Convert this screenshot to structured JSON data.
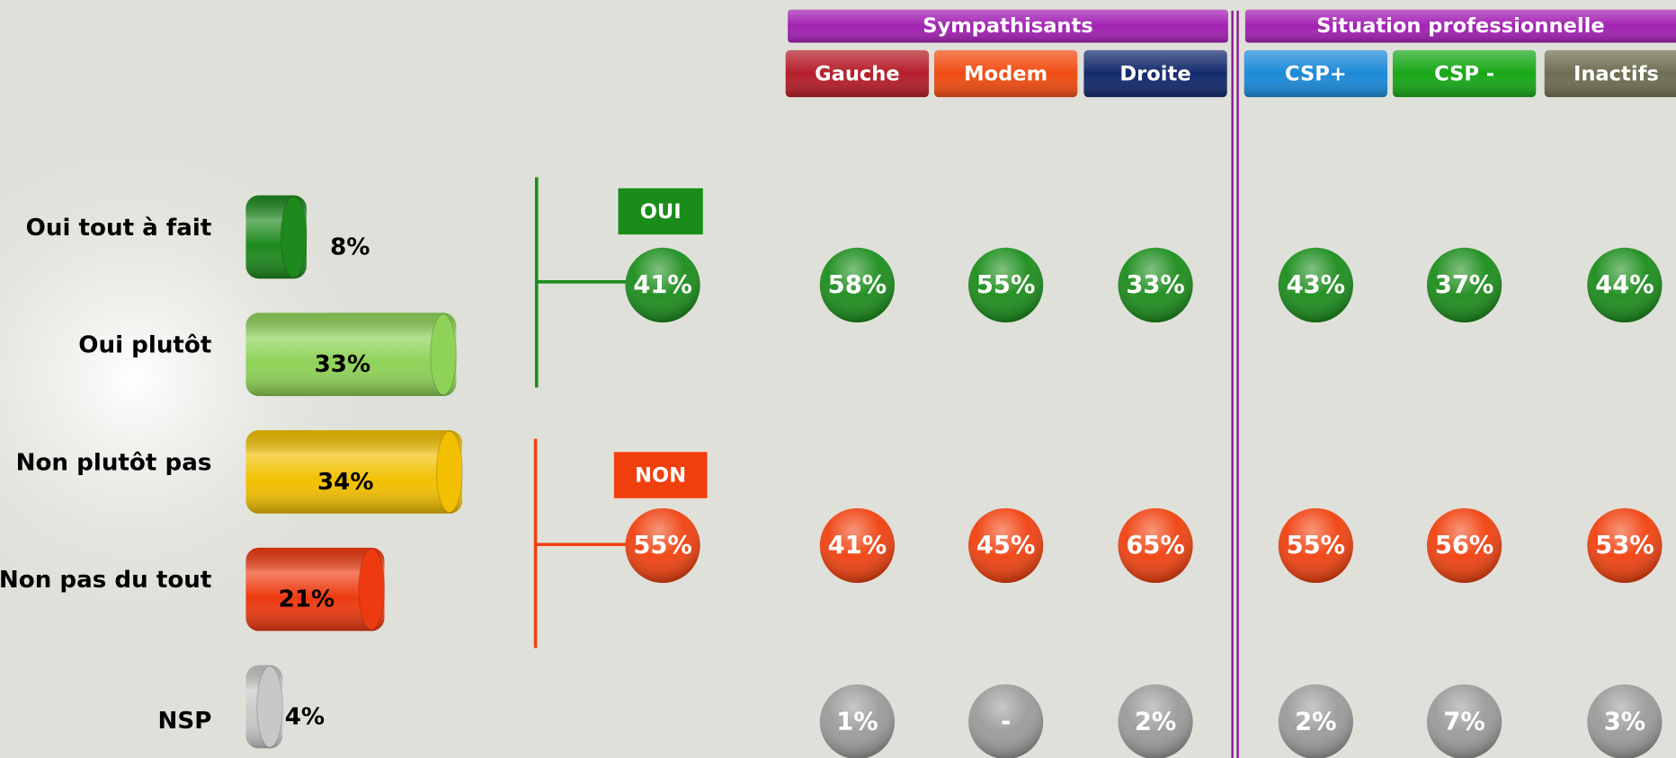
{
  "chart_data": {
    "type": "bar",
    "categories": [
      "Oui tout à fait",
      "Oui plutôt",
      "Non plutôt pas",
      "Non pas du tout",
      "NSP"
    ],
    "values": [
      8,
      33,
      34,
      21,
      4
    ],
    "value_labels": [
      "8%",
      "33%",
      "34%",
      "21%",
      "4%"
    ],
    "colors": [
      "#1e8a1e",
      "#8ed257",
      "#f2c000",
      "#ee3a10",
      "#c8c8c8"
    ]
  },
  "groups": [
    {
      "title": "Sympathisants",
      "columns": [
        {
          "label": "Gauche",
          "color": "#b41e2a"
        },
        {
          "label": "Modem",
          "color": "#f04c12"
        },
        {
          "label": "Droite",
          "color": "#132a6c"
        }
      ]
    },
    {
      "title": "Situation professionnelle",
      "columns": [
        {
          "label": "CSP+",
          "color": "#1c8ad8"
        },
        {
          "label": "CSP -",
          "color": "#18a818"
        },
        {
          "label": "Inactifs",
          "color": "#6e6e52"
        }
      ]
    }
  ],
  "summary": {
    "rows": [
      {
        "label": "OUI",
        "total": "41%",
        "color": "#1a8c1a",
        "values": [
          "58%",
          "55%",
          "33%",
          "43%",
          "37%",
          "44%"
        ]
      },
      {
        "label": "NON",
        "total": "55%",
        "color": "#f0400e",
        "values": [
          "41%",
          "45%",
          "65%",
          "55%",
          "56%",
          "53%"
        ]
      },
      {
        "color": "#9a9a9a",
        "values": [
          "1%",
          "-",
          "2%",
          "2%",
          "7%",
          "3%"
        ]
      }
    ]
  }
}
